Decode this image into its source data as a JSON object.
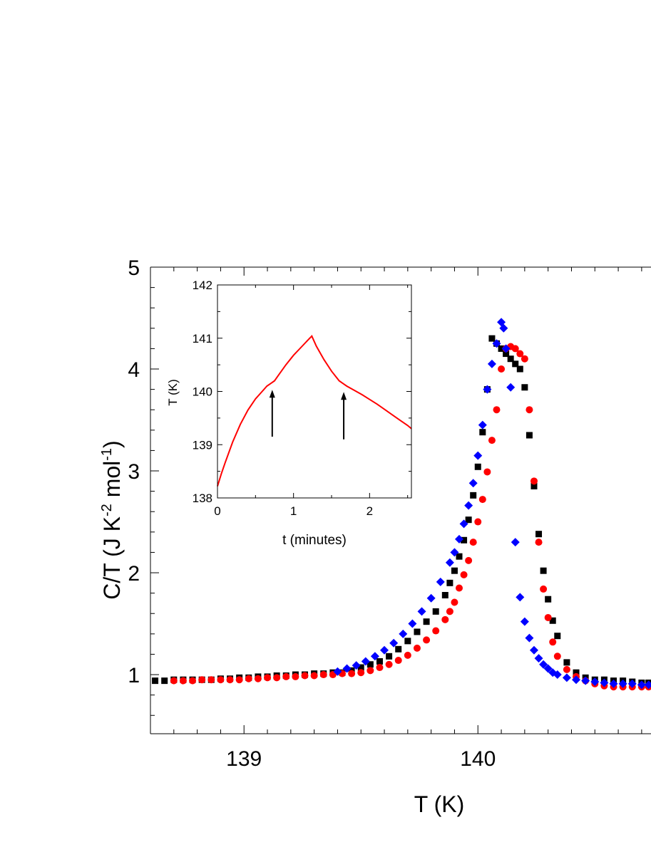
{
  "chart_data": [
    {
      "type": "scatter",
      "xlabel": "T (K)",
      "ylabel": "C/T (J K^-2 mol^-1)",
      "ylabel_parts": {
        "a": "C/T (J K",
        "b": "-2",
        "c": " mol",
        "d": "-1",
        "e": ")"
      },
      "xlim": [
        138.6,
        140.74
      ],
      "ylim": [
        0.42,
        5.0
      ],
      "xticks": [
        139,
        140
      ],
      "xtick_labels": [
        "139",
        "140"
      ],
      "yticks": [
        1,
        2,
        3,
        4,
        5
      ],
      "ytick_labels": [
        "1",
        "2",
        "3",
        "4",
        "5"
      ],
      "series": [
        {
          "marker": "square",
          "color": "#000000",
          "x": [
            138.62,
            138.66,
            138.7,
            138.74,
            138.78,
            138.82,
            138.86,
            138.9,
            138.94,
            138.98,
            139.02,
            139.06,
            139.1,
            139.14,
            139.18,
            139.22,
            139.26,
            139.3,
            139.34,
            139.38,
            139.42,
            139.46,
            139.5,
            139.54,
            139.58,
            139.62,
            139.66,
            139.7,
            139.74,
            139.78,
            139.82,
            139.86,
            139.88,
            139.9,
            139.92,
            139.94,
            139.96,
            139.98,
            140.0,
            140.02,
            140.04,
            140.06,
            140.08,
            140.1,
            140.12,
            140.14,
            140.16,
            140.18,
            140.2,
            140.22,
            140.24,
            140.26,
            140.28,
            140.3,
            140.32,
            140.34,
            140.38,
            140.42,
            140.46,
            140.5,
            140.54,
            140.58,
            140.62,
            140.66,
            140.7,
            140.73
          ],
          "y": [
            0.94,
            0.94,
            0.95,
            0.95,
            0.95,
            0.95,
            0.95,
            0.96,
            0.96,
            0.97,
            0.97,
            0.98,
            0.98,
            0.99,
            0.99,
            1.0,
            1.0,
            1.01,
            1.01,
            1.02,
            1.02,
            1.04,
            1.07,
            1.1,
            1.13,
            1.18,
            1.25,
            1.33,
            1.42,
            1.52,
            1.62,
            1.78,
            1.9,
            2.02,
            2.16,
            2.32,
            2.52,
            2.76,
            3.04,
            3.38,
            3.8,
            4.3,
            4.25,
            4.2,
            4.15,
            4.1,
            4.05,
            4.0,
            3.82,
            3.35,
            2.85,
            2.38,
            2.02,
            1.74,
            1.53,
            1.38,
            1.12,
            1.02,
            0.97,
            0.95,
            0.95,
            0.94,
            0.94,
            0.93,
            0.92,
            0.92
          ]
        },
        {
          "marker": "circle",
          "color": "#ff0000",
          "x": [
            138.7,
            138.74,
            138.78,
            138.82,
            138.86,
            138.9,
            138.94,
            138.98,
            139.02,
            139.06,
            139.1,
            139.14,
            139.18,
            139.22,
            139.26,
            139.3,
            139.34,
            139.38,
            139.42,
            139.46,
            139.5,
            139.54,
            139.58,
            139.62,
            139.66,
            139.7,
            139.74,
            139.78,
            139.82,
            139.86,
            139.88,
            139.9,
            139.92,
            139.94,
            139.96,
            139.98,
            140.0,
            140.02,
            140.04,
            140.06,
            140.08,
            140.1,
            140.12,
            140.14,
            140.16,
            140.18,
            140.2,
            140.22,
            140.24,
            140.26,
            140.28,
            140.3,
            140.32,
            140.34,
            140.38,
            140.42,
            140.46,
            140.5,
            140.54,
            140.58,
            140.62,
            140.66,
            140.7,
            140.73
          ],
          "y": [
            0.94,
            0.94,
            0.94,
            0.95,
            0.95,
            0.95,
            0.95,
            0.95,
            0.96,
            0.96,
            0.97,
            0.97,
            0.98,
            0.98,
            0.99,
            0.99,
            1.0,
            1.0,
            1.01,
            1.01,
            1.02,
            1.04,
            1.07,
            1.1,
            1.14,
            1.19,
            1.26,
            1.34,
            1.43,
            1.54,
            1.62,
            1.71,
            1.85,
            1.98,
            2.12,
            2.3,
            2.5,
            2.72,
            2.99,
            3.3,
            3.6,
            4.0,
            4.2,
            4.22,
            4.2,
            4.15,
            4.1,
            3.6,
            2.9,
            2.3,
            1.84,
            1.56,
            1.32,
            1.18,
            1.05,
            0.98,
            0.94,
            0.91,
            0.89,
            0.88,
            0.88,
            0.88,
            0.88,
            0.88
          ]
        },
        {
          "marker": "diamond",
          "color": "#0000ff",
          "x": [
            139.4,
            139.44,
            139.48,
            139.52,
            139.56,
            139.6,
            139.64,
            139.68,
            139.72,
            139.76,
            139.8,
            139.84,
            139.88,
            139.9,
            139.92,
            139.94,
            139.96,
            139.98,
            140.0,
            140.02,
            140.04,
            140.06,
            140.08,
            140.1,
            140.11,
            140.12,
            140.14,
            140.16,
            140.18,
            140.2,
            140.22,
            140.24,
            140.26,
            140.28,
            140.3,
            140.32,
            140.34,
            140.38,
            140.42,
            140.46,
            140.5,
            140.54,
            140.58,
            140.62,
            140.66,
            140.7,
            140.73
          ],
          "y": [
            1.03,
            1.06,
            1.09,
            1.13,
            1.18,
            1.24,
            1.31,
            1.4,
            1.5,
            1.62,
            1.75,
            1.91,
            2.1,
            2.2,
            2.33,
            2.48,
            2.66,
            2.88,
            3.15,
            3.45,
            3.8,
            4.05,
            4.25,
            4.46,
            4.4,
            4.2,
            3.82,
            2.3,
            1.76,
            1.52,
            1.36,
            1.24,
            1.16,
            1.1,
            1.06,
            1.02,
            1.0,
            0.97,
            0.95,
            0.94,
            0.93,
            0.92,
            0.91,
            0.91,
            0.91,
            0.9,
            0.9
          ]
        }
      ]
    },
    {
      "type": "line",
      "xlabel": "t (minutes)",
      "ylabel": "T (K)",
      "xlim": [
        0,
        2.55
      ],
      "ylim": [
        138,
        142
      ],
      "xticks": [
        0,
        1,
        2
      ],
      "xtick_labels": [
        "0",
        "1",
        "2"
      ],
      "yticks": [
        138,
        139,
        140,
        141,
        142
      ],
      "ytick_labels": [
        "138",
        "139",
        "140",
        "141",
        "142"
      ],
      "series": [
        {
          "color": "#ff0000",
          "x": [
            0.0,
            0.05,
            0.1,
            0.2,
            0.3,
            0.4,
            0.5,
            0.6,
            0.65,
            0.7,
            0.75,
            0.8,
            0.9,
            1.0,
            1.1,
            1.2,
            1.24,
            1.3,
            1.4,
            1.5,
            1.6,
            1.65,
            1.7,
            1.8,
            1.9,
            2.0,
            2.1,
            2.2,
            2.3,
            2.4,
            2.5,
            2.55
          ],
          "y": [
            138.22,
            138.45,
            138.66,
            139.05,
            139.38,
            139.65,
            139.86,
            140.02,
            140.1,
            140.15,
            140.2,
            140.3,
            140.5,
            140.68,
            140.83,
            140.98,
            141.04,
            140.85,
            140.6,
            140.38,
            140.2,
            140.15,
            140.1,
            140.02,
            139.94,
            139.85,
            139.76,
            139.66,
            139.56,
            139.46,
            139.36,
            139.3
          ]
        }
      ],
      "arrows": [
        {
          "x": 0.72,
          "y_from": 139.15,
          "y_to": 140.03
        },
        {
          "x": 1.66,
          "y_from": 139.1,
          "y_to": 139.99
        }
      ]
    }
  ]
}
